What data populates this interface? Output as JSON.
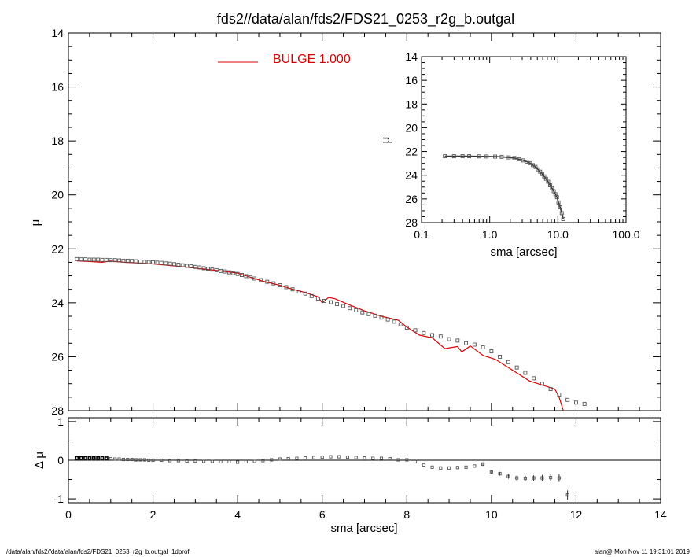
{
  "page": {
    "title": "fds2//data/alan/fds2/FDS21_0253_r2g_b.outgal",
    "footer_left": "/data/alan/fds2//data/alan/fds2/FDS21_0253_r2g_b.outgal_1dprof",
    "footer_right": "alan@  Mon Nov 11 19:31:01 2019"
  },
  "colors": {
    "model": "#dd0000",
    "data": "#555555",
    "axes": "#000000"
  },
  "chart_data": [
    {
      "id": "main",
      "type": "scatter",
      "title": "fds2//data/alan/fds2/FDS21_0253_r2g_b.outgal",
      "xlabel": "sma [arcsec]",
      "ylabel": "μ",
      "xlim": [
        0,
        14
      ],
      "ylim": [
        28,
        14
      ],
      "y_inverted": true,
      "xticks": [
        0,
        2,
        4,
        6,
        8,
        10,
        12,
        14
      ],
      "yticks": [
        14,
        16,
        18,
        20,
        22,
        24,
        26,
        28
      ],
      "legend": {
        "label": "BULGE  1.000",
        "position": "top-center"
      },
      "series": [
        {
          "name": "BULGE  1.000",
          "kind": "line",
          "x": [
            0.2,
            0.5,
            0.8,
            1.0,
            1.3,
            1.6,
            2.0,
            2.4,
            2.8,
            3.2,
            3.6,
            4.0,
            4.3,
            4.6,
            5.0,
            5.3,
            5.6,
            5.9,
            6.0,
            6.15,
            6.3,
            6.6,
            7.0,
            7.4,
            7.8,
            8.0,
            8.3,
            8.6,
            8.9,
            9.2,
            9.3,
            9.5,
            9.8,
            10.1,
            10.5,
            10.9,
            11.3,
            11.5,
            11.6,
            11.7
          ],
          "y": [
            22.45,
            22.47,
            22.5,
            22.45,
            22.5,
            22.52,
            22.56,
            22.62,
            22.68,
            22.75,
            22.82,
            22.9,
            23.05,
            23.2,
            23.35,
            23.5,
            23.62,
            23.78,
            24.0,
            23.8,
            23.85,
            24.05,
            24.3,
            24.5,
            24.65,
            24.9,
            25.2,
            25.3,
            25.7,
            25.62,
            25.82,
            25.6,
            25.95,
            26.1,
            26.5,
            26.9,
            27.1,
            27.2,
            27.5,
            28.0
          ]
        },
        {
          "name": "",
          "kind": "points",
          "x": [
            0.2,
            0.3,
            0.4,
            0.5,
            0.6,
            0.7,
            0.8,
            0.9,
            1.0,
            1.1,
            1.2,
            1.3,
            1.4,
            1.5,
            1.6,
            1.7,
            1.8,
            1.9,
            2.0,
            2.1,
            2.2,
            2.3,
            2.4,
            2.5,
            2.6,
            2.7,
            2.8,
            2.9,
            3.0,
            3.1,
            3.2,
            3.3,
            3.4,
            3.5,
            3.6,
            3.7,
            3.8,
            3.9,
            4.0,
            4.1,
            4.2,
            4.3,
            4.4,
            4.55,
            4.7,
            4.85,
            5.0,
            5.15,
            5.3,
            5.45,
            5.6,
            5.75,
            5.9,
            6.05,
            6.2,
            6.35,
            6.5,
            6.65,
            6.8,
            6.95,
            7.1,
            7.25,
            7.4,
            7.55,
            7.7,
            7.85,
            8.0,
            8.2,
            8.4,
            8.6,
            8.8,
            9.0,
            9.2,
            9.4,
            9.6,
            9.8,
            10.0,
            10.2,
            10.4,
            10.6,
            10.8,
            11.0,
            11.2,
            11.4,
            11.6,
            11.8,
            12.0,
            12.2
          ],
          "y": [
            22.38,
            22.39,
            22.39,
            22.4,
            22.4,
            22.4,
            22.41,
            22.41,
            22.42,
            22.42,
            22.43,
            22.44,
            22.44,
            22.45,
            22.46,
            22.47,
            22.48,
            22.49,
            22.5,
            22.51,
            22.52,
            22.54,
            22.55,
            22.57,
            22.59,
            22.61,
            22.63,
            22.65,
            22.67,
            22.69,
            22.72,
            22.74,
            22.77,
            22.79,
            22.82,
            22.84,
            22.87,
            22.9,
            22.93,
            22.97,
            23.01,
            23.05,
            23.1,
            23.16,
            23.22,
            23.28,
            23.35,
            23.42,
            23.5,
            23.58,
            23.66,
            23.75,
            23.84,
            23.93,
            23.98,
            24.05,
            24.12,
            24.2,
            24.28,
            24.36,
            24.42,
            24.48,
            24.55,
            24.62,
            24.7,
            24.8,
            24.92,
            25.02,
            25.12,
            25.2,
            25.25,
            25.35,
            25.4,
            25.5,
            25.55,
            25.65,
            25.8,
            26.0,
            26.2,
            26.4,
            26.6,
            26.8,
            27.0,
            27.2,
            27.4,
            27.6,
            27.7,
            27.75
          ]
        }
      ]
    },
    {
      "id": "inset",
      "type": "scatter",
      "xlabel": "sma [arcsec]",
      "ylabel": "μ",
      "x_scale": "log",
      "xlim": [
        0.1,
        100.0
      ],
      "ylim": [
        28,
        14
      ],
      "y_inverted": true,
      "xticks": [
        0.1,
        1.0,
        10.0,
        100.0
      ],
      "xtick_labels": [
        "0.1",
        "1.0",
        "10.0",
        "100.0"
      ],
      "yticks": [
        14,
        16,
        18,
        20,
        22,
        24,
        26,
        28
      ],
      "series": [
        {
          "name": "",
          "kind": "line+points",
          "x": [
            0.22,
            0.3,
            0.4,
            0.5,
            0.7,
            0.9,
            1.2,
            1.5,
            1.9,
            2.3,
            2.7,
            3.1,
            3.5,
            3.9,
            4.3,
            4.7,
            5.1,
            5.5,
            5.9,
            6.3,
            6.7,
            7.2,
            7.7,
            8.2,
            8.7,
            9.2,
            9.7,
            10.2,
            10.8,
            11.4,
            12.0
          ],
          "y": [
            22.4,
            22.4,
            22.4,
            22.4,
            22.41,
            22.42,
            22.43,
            22.45,
            22.5,
            22.55,
            22.65,
            22.75,
            22.85,
            22.98,
            23.15,
            23.3,
            23.5,
            23.7,
            23.9,
            24.1,
            24.3,
            24.55,
            24.85,
            25.1,
            25.35,
            25.6,
            25.85,
            26.3,
            26.7,
            27.2,
            27.7
          ]
        }
      ]
    },
    {
      "id": "residual",
      "type": "scatter",
      "xlabel": "sma [arcsec]",
      "ylabel": "Δ μ",
      "xlim": [
        0,
        14
      ],
      "ylim": [
        -1.1,
        1.1
      ],
      "xticks": [
        0,
        2,
        4,
        6,
        8,
        10,
        12,
        14
      ],
      "yticks": [
        1,
        0,
        -1
      ],
      "reference_line": 0,
      "series": [
        {
          "name": "",
          "kind": "points",
          "x": [
            0.2,
            0.3,
            0.4,
            0.5,
            0.6,
            0.7,
            0.8,
            0.9,
            1.0,
            1.1,
            1.2,
            1.3,
            1.4,
            1.5,
            1.6,
            1.7,
            1.8,
            1.9,
            2.0,
            2.2,
            2.4,
            2.6,
            2.8,
            3.0,
            3.2,
            3.4,
            3.6,
            3.8,
            4.0,
            4.2,
            4.4,
            4.6,
            4.8,
            5.0,
            5.2,
            5.4,
            5.6,
            5.8,
            6.0,
            6.2,
            6.4,
            6.6,
            6.8,
            7.0,
            7.2,
            7.4,
            7.6,
            7.8,
            8.0,
            8.2,
            8.4,
            8.6,
            8.8,
            9.0,
            9.2,
            9.4,
            9.6,
            9.8,
            10.0,
            10.2,
            10.4,
            10.6,
            10.8,
            11.0,
            11.2,
            11.4,
            11.6,
            11.8
          ],
          "y": [
            0.06,
            0.06,
            0.06,
            0.06,
            0.06,
            0.06,
            0.06,
            0.05,
            0.04,
            0.03,
            0.03,
            0.02,
            0.02,
            0.02,
            0.01,
            0.01,
            0.01,
            0.0,
            0.0,
            0.0,
            -0.01,
            -0.01,
            -0.02,
            -0.02,
            -0.03,
            -0.03,
            -0.04,
            -0.04,
            -0.05,
            -0.04,
            -0.03,
            -0.01,
            0.01,
            0.03,
            0.04,
            0.05,
            0.06,
            0.07,
            0.08,
            0.09,
            0.09,
            0.08,
            0.07,
            0.06,
            0.05,
            0.05,
            0.04,
            0.01,
            0.01,
            -0.04,
            -0.12,
            -0.18,
            -0.2,
            -0.2,
            -0.19,
            -0.18,
            -0.15,
            -0.1,
            -0.3,
            -0.35,
            -0.42,
            -0.46,
            -0.47,
            -0.46,
            -0.46,
            -0.45,
            -0.46,
            -0.9
          ],
          "err": [
            0,
            0,
            0,
            0,
            0,
            0,
            0,
            0,
            0,
            0,
            0,
            0,
            0,
            0,
            0,
            0,
            0,
            0,
            0,
            0,
            0,
            0,
            0,
            0,
            0,
            0,
            0,
            0,
            0,
            0,
            0,
            0,
            0,
            0,
            0,
            0,
            0,
            0,
            0,
            0,
            0,
            0,
            0,
            0,
            0,
            0,
            0,
            0,
            0,
            0,
            0,
            0,
            0,
            0,
            0,
            0,
            0,
            0.05,
            0.05,
            0.05,
            0.06,
            0.06,
            0.07,
            0.07,
            0.08,
            0.09,
            0.1,
            0.12
          ]
        }
      ]
    }
  ]
}
